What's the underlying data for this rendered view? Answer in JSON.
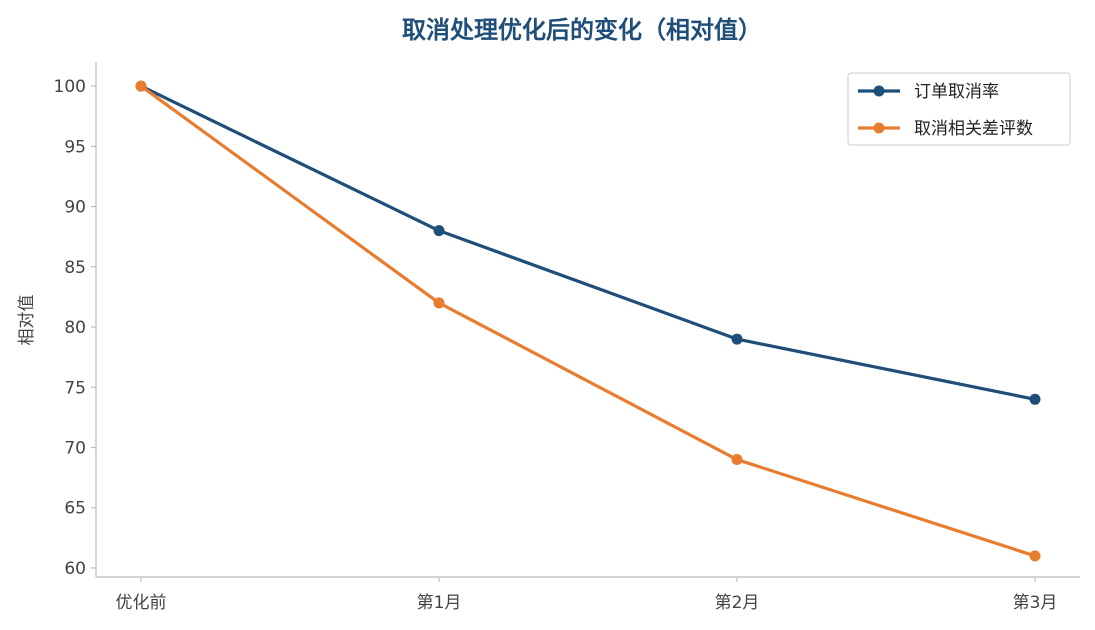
{
  "chart_data": {
    "type": "line",
    "title": "取消处理优化后的变化（相对值）",
    "xlabel": "",
    "ylabel": "相对值",
    "categories": [
      "优化前",
      "第1月",
      "第2月",
      "第3月"
    ],
    "series": [
      {
        "name": "订单取消率",
        "values": [
          100,
          88,
          79,
          74
        ],
        "color": "#1f4e79"
      },
      {
        "name": "取消相关差评数",
        "values": [
          100,
          82,
          69,
          61
        ],
        "color": "#e87d2f"
      }
    ],
    "ylim": [
      59.25,
      102
    ],
    "yticks": [
      60,
      65,
      70,
      75,
      80,
      85,
      90,
      95,
      100
    ],
    "grid": false,
    "legend": "top-right",
    "title_color": "#1f4e79"
  }
}
